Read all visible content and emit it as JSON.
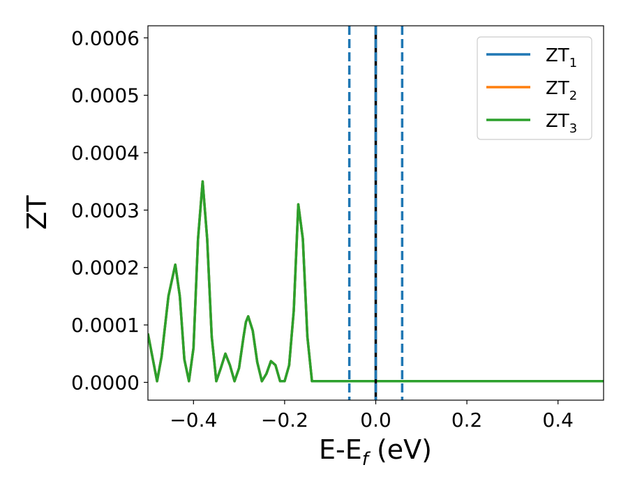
{
  "chart_data": {
    "type": "line",
    "xlabel": {
      "main": "E-E",
      "sub": "f",
      "unit": " (eV)"
    },
    "ylabel": "ZT",
    "xlim": [
      -0.5,
      0.5
    ],
    "ylim": [
      -3.1e-05,
      0.000621
    ],
    "x_ticks": [
      -0.4,
      -0.2,
      0.0,
      0.2,
      0.4
    ],
    "x_tick_labels": [
      "−0.4",
      "−0.2",
      "0.0",
      "0.2",
      "0.4"
    ],
    "y_ticks": [
      0.0,
      0.0001,
      0.0002,
      0.0003,
      0.0004,
      0.0005,
      0.0006
    ],
    "y_tick_labels": [
      "0.0000",
      "0.0001",
      "0.0002",
      "0.0003",
      "0.0004",
      "0.0005",
      "0.0006"
    ],
    "grid": false,
    "legend_position": "top-right",
    "series": [
      {
        "name": "ZT",
        "sub": "1",
        "color": "#1f77b4"
      },
      {
        "name": "ZT",
        "sub": "2",
        "color": "#ff7f0e"
      },
      {
        "name": "ZT",
        "sub": "3",
        "color": "#2ca02c"
      }
    ],
    "curve": {
      "x": [
        -0.5,
        -0.48,
        -0.47,
        -0.455,
        -0.44,
        -0.43,
        -0.42,
        -0.41,
        -0.4,
        -0.39,
        -0.38,
        -0.37,
        -0.36,
        -0.35,
        -0.34,
        -0.33,
        -0.32,
        -0.31,
        -0.3,
        -0.29,
        -0.285,
        -0.28,
        -0.27,
        -0.26,
        -0.25,
        -0.24,
        -0.23,
        -0.22,
        -0.21,
        -0.2,
        -0.19,
        -0.18,
        -0.17,
        -0.16,
        -0.15,
        -0.14,
        -0.13,
        -0.12,
        -0.11,
        -0.1,
        -0.09,
        -0.08,
        -0.07,
        -0.06,
        -0.05,
        -0.04,
        -0.03,
        -0.02,
        -0.01,
        0.0,
        0.01,
        0.02,
        0.03,
        0.04,
        0.05,
        0.06,
        0.07,
        0.08,
        0.09,
        0.1,
        0.12,
        0.14,
        0.16,
        0.17,
        0.18,
        0.2,
        0.22,
        0.24,
        0.25,
        0.26,
        0.27,
        0.28,
        0.3,
        0.32,
        0.34,
        0.35,
        0.36,
        0.38,
        0.4,
        0.42,
        0.44,
        0.46,
        0.47,
        0.48,
        0.49,
        0.5
      ],
      "y": [
        8.5e-05,
        2e-06,
        4.5e-05,
        0.00015,
        0.000205,
        0.00015,
        4e-05,
        2e-06,
        6e-05,
        0.00025,
        0.00035,
        0.00025,
        8e-05,
        2e-06,
        2.5e-05,
        5e-05,
        3e-05,
        2e-06,
        2.5e-05,
        8e-05,
        0.000105,
        0.000115,
        9e-05,
        3.5e-05,
        2e-06,
        1.5e-05,
        3.7e-05,
        3e-05,
        2e-06,
        2e-06,
        3e-05,
        0.000125,
        0.00031,
        0.00025,
        8e-05,
        2e-06,
        2e-06,
        2e-06,
        2e-06,
        2e-06,
        2e-06,
        2e-06,
        2e-06,
        2e-06,
        2e-06,
        2e-06,
        2e-06,
        2e-06,
        2e-06,
        2e-06,
        2e-06,
        2e-06,
        2e-06,
        2e-06,
        2e-06,
        2e-06,
        2e-06,
        2e-06,
        2e-06,
        2e-06,
        2e-06,
        2e-06,
        2e-06,
        2e-06,
        2e-06,
        2e-06,
        2e-06,
        2e-06,
        2e-06,
        2e-06,
        2e-06,
        2e-06,
        2e-06,
        2e-06,
        2e-06,
        2e-06,
        2e-06,
        2e-06,
        2e-06,
        2e-06,
        2e-06,
        2e-06,
        2e-06,
        2e-06,
        2e-06,
        2e-06
      ]
    },
    "vertical_lines": [
      {
        "x": -0.058,
        "style": "dashed",
        "color": "#1f77b4"
      },
      {
        "x": 0.0,
        "style": "solid",
        "color": "#000000"
      },
      {
        "x": 0.0,
        "style": "dashed",
        "color": "#1f77b4"
      },
      {
        "x": 0.058,
        "style": "dashed",
        "color": "#1f77b4"
      }
    ]
  }
}
